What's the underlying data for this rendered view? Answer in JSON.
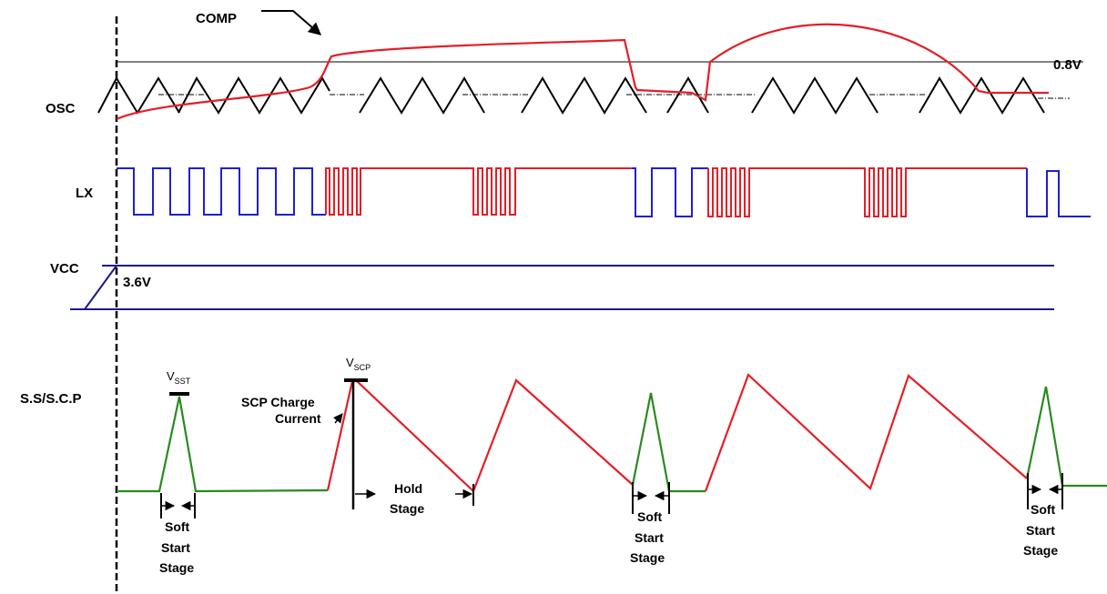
{
  "labels": {
    "comp": "COMP",
    "v08": "0.8V",
    "osc": "OSC",
    "lx": "LX",
    "vcc": "VCC",
    "v36": "3.6V",
    "sscp": "S.S/S.C.P",
    "vsst_main": "V",
    "vsst_sub": "SST",
    "vscp_main": "V",
    "vscp_sub": "SCP",
    "scp_charge_1": "SCP Charge",
    "scp_charge_2": "Current",
    "hold_1": "Hold",
    "hold_2": "Stage",
    "soft_1": "Soft",
    "soft_2": "Start",
    "soft_3": "Stage"
  },
  "colors": {
    "black": "#000000",
    "red": "#e41e26",
    "blue": "#1f1fd0",
    "navy": "#1a1a8c",
    "green": "#2a8a1e"
  }
}
